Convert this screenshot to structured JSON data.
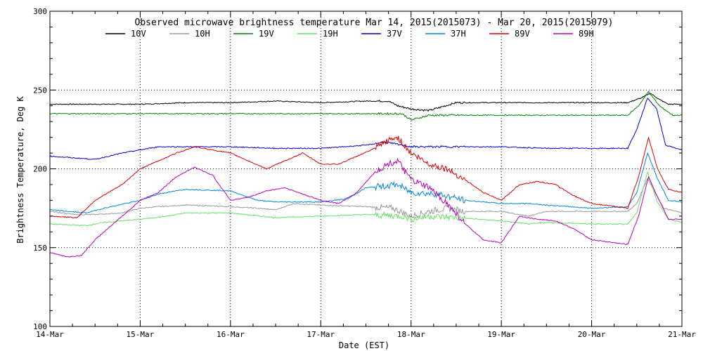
{
  "chart_data": {
    "type": "line",
    "title": "Observed microwave brightness temperature Mar 14, 2015(2015073) - Mar 20, 2015(2015079)",
    "xlabel": "Date (EST)",
    "ylabel": "Brightness Temperature, Deg K",
    "xlim": [
      0,
      7
    ],
    "ylim": [
      100,
      300
    ],
    "x_ticks": [
      "14-Mar",
      "15-Mar",
      "16-Mar",
      "17-Mar",
      "18-Mar",
      "19-Mar",
      "20-Mar",
      "21-Mar"
    ],
    "y_ticks": [
      100,
      150,
      200,
      250,
      300
    ],
    "grid": "dotted",
    "legend_position": "top",
    "series": [
      {
        "name": "10V",
        "color": "#000000",
        "points": [
          [
            0,
            241
          ],
          [
            1,
            241
          ],
          [
            1.5,
            242
          ],
          [
            2,
            242
          ],
          [
            2.5,
            243
          ],
          [
            3,
            242
          ],
          [
            3.5,
            243
          ],
          [
            3.75,
            243
          ],
          [
            3.85,
            240
          ],
          [
            4,
            238
          ],
          [
            4.2,
            237
          ],
          [
            4.5,
            242
          ],
          [
            5,
            242
          ],
          [
            5.5,
            242
          ],
          [
            6,
            242
          ],
          [
            6.4,
            242
          ],
          [
            6.55,
            245
          ],
          [
            6.65,
            248
          ],
          [
            6.75,
            244
          ],
          [
            6.85,
            241
          ],
          [
            7,
            241
          ]
        ]
      },
      {
        "name": "10H",
        "color": "#999999",
        "points": [
          [
            0,
            173
          ],
          [
            0.3,
            171
          ],
          [
            0.5,
            171
          ],
          [
            0.8,
            172
          ],
          [
            1,
            175
          ],
          [
            1.2,
            176
          ],
          [
            1.5,
            177
          ],
          [
            2,
            176
          ],
          [
            2.3,
            175
          ],
          [
            2.5,
            174
          ],
          [
            2.7,
            178
          ],
          [
            3,
            177
          ],
          [
            3.5,
            176
          ],
          [
            3.8,
            175
          ],
          [
            4,
            170
          ],
          [
            4.2,
            173
          ],
          [
            4.4,
            175
          ],
          [
            4.6,
            173
          ],
          [
            5,
            173
          ],
          [
            5.3,
            170
          ],
          [
            5.5,
            173
          ],
          [
            6,
            173
          ],
          [
            6.4,
            173
          ],
          [
            6.5,
            178
          ],
          [
            6.62,
            194
          ],
          [
            6.72,
            183
          ],
          [
            6.8,
            175
          ],
          [
            7,
            172
          ]
        ]
      },
      {
        "name": "19V",
        "color": "#008000",
        "points": [
          [
            0,
            235
          ],
          [
            1,
            235
          ],
          [
            2,
            235
          ],
          [
            3,
            235
          ],
          [
            3.5,
            235
          ],
          [
            3.9,
            235
          ],
          [
            4,
            231
          ],
          [
            4.2,
            234
          ],
          [
            5,
            234
          ],
          [
            6,
            234
          ],
          [
            6.4,
            234
          ],
          [
            6.52,
            240
          ],
          [
            6.63,
            249
          ],
          [
            6.75,
            240
          ],
          [
            6.9,
            234
          ],
          [
            7,
            234
          ]
        ]
      },
      {
        "name": "19H",
        "color": "#66e066",
        "points": [
          [
            0,
            165
          ],
          [
            0.4,
            164
          ],
          [
            0.6,
            166
          ],
          [
            1,
            168
          ],
          [
            1.3,
            170
          ],
          [
            1.5,
            172
          ],
          [
            2,
            172
          ],
          [
            2.5,
            169
          ],
          [
            3,
            170
          ],
          [
            3.5,
            171
          ],
          [
            3.9,
            170
          ],
          [
            4,
            168
          ],
          [
            4.2,
            170
          ],
          [
            4.5,
            169
          ],
          [
            5,
            167
          ],
          [
            5.3,
            165
          ],
          [
            5.5,
            166
          ],
          [
            6,
            165
          ],
          [
            6.4,
            165
          ],
          [
            6.5,
            172
          ],
          [
            6.62,
            198
          ],
          [
            6.72,
            180
          ],
          [
            6.85,
            168
          ],
          [
            7,
            166
          ]
        ]
      },
      {
        "name": "37V",
        "color": "#0000cc",
        "points": [
          [
            0,
            208
          ],
          [
            0.5,
            206
          ],
          [
            0.8,
            210
          ],
          [
            1,
            212
          ],
          [
            1.2,
            214
          ],
          [
            1.5,
            214
          ],
          [
            2,
            214
          ],
          [
            2.5,
            213
          ],
          [
            3,
            213
          ],
          [
            3.5,
            215
          ],
          [
            3.7,
            217
          ],
          [
            4,
            214
          ],
          [
            4.3,
            214
          ],
          [
            5,
            214
          ],
          [
            5.5,
            213
          ],
          [
            6,
            213
          ],
          [
            6.4,
            213
          ],
          [
            6.5,
            225
          ],
          [
            6.62,
            245
          ],
          [
            6.72,
            238
          ],
          [
            6.82,
            215
          ],
          [
            7,
            212
          ]
        ]
      },
      {
        "name": "37H",
        "color": "#0088dd",
        "points": [
          [
            0,
            174
          ],
          [
            0.4,
            172
          ],
          [
            0.6,
            175
          ],
          [
            1,
            180
          ],
          [
            1.2,
            184
          ],
          [
            1.5,
            187
          ],
          [
            2,
            186
          ],
          [
            2.3,
            180
          ],
          [
            2.5,
            179
          ],
          [
            3,
            179
          ],
          [
            3.3,
            181
          ],
          [
            3.5,
            188
          ],
          [
            3.7,
            189
          ],
          [
            3.85,
            190
          ],
          [
            4,
            185
          ],
          [
            4.3,
            184
          ],
          [
            4.6,
            180
          ],
          [
            5,
            178
          ],
          [
            5.3,
            178
          ],
          [
            5.5,
            177
          ],
          [
            6,
            175
          ],
          [
            6.4,
            176
          ],
          [
            6.5,
            185
          ],
          [
            6.62,
            210
          ],
          [
            6.72,
            195
          ],
          [
            6.85,
            180
          ],
          [
            7,
            179
          ]
        ]
      },
      {
        "name": "89V",
        "color": "#dd0000",
        "points": [
          [
            0,
            170
          ],
          [
            0.3,
            169
          ],
          [
            0.5,
            180
          ],
          [
            0.8,
            190
          ],
          [
            1,
            200
          ],
          [
            1.2,
            205
          ],
          [
            1.4,
            210
          ],
          [
            1.6,
            214
          ],
          [
            1.8,
            212
          ],
          [
            2,
            210
          ],
          [
            2.2,
            205
          ],
          [
            2.4,
            200
          ],
          [
            2.6,
            205
          ],
          [
            2.8,
            210
          ],
          [
            3,
            203
          ],
          [
            3.2,
            203
          ],
          [
            3.4,
            208
          ],
          [
            3.6,
            213
          ],
          [
            3.75,
            218
          ],
          [
            3.85,
            220
          ],
          [
            4,
            210
          ],
          [
            4.2,
            203
          ],
          [
            4.4,
            200
          ],
          [
            4.6,
            193
          ],
          [
            4.8,
            185
          ],
          [
            5,
            180
          ],
          [
            5.2,
            190
          ],
          [
            5.4,
            192
          ],
          [
            5.6,
            190
          ],
          [
            5.8,
            183
          ],
          [
            6,
            178
          ],
          [
            6.4,
            175
          ],
          [
            6.52,
            195
          ],
          [
            6.63,
            220
          ],
          [
            6.73,
            200
          ],
          [
            6.85,
            187
          ],
          [
            7,
            185
          ]
        ]
      },
      {
        "name": "89H",
        "color": "#bb00bb",
        "points": [
          [
            0,
            147
          ],
          [
            0.2,
            144
          ],
          [
            0.35,
            145
          ],
          [
            0.5,
            155
          ],
          [
            0.7,
            165
          ],
          [
            0.9,
            175
          ],
          [
            1,
            180
          ],
          [
            1.2,
            185
          ],
          [
            1.4,
            195
          ],
          [
            1.6,
            201
          ],
          [
            1.8,
            196
          ],
          [
            2,
            180
          ],
          [
            2.2,
            182
          ],
          [
            2.4,
            186
          ],
          [
            2.6,
            188
          ],
          [
            2.8,
            184
          ],
          [
            3,
            180
          ],
          [
            3.2,
            178
          ],
          [
            3.4,
            185
          ],
          [
            3.6,
            198
          ],
          [
            3.75,
            203
          ],
          [
            3.85,
            205
          ],
          [
            4,
            193
          ],
          [
            4.2,
            188
          ],
          [
            4.4,
            178
          ],
          [
            4.6,
            165
          ],
          [
            4.8,
            155
          ],
          [
            5,
            153
          ],
          [
            5.2,
            170
          ],
          [
            5.4,
            168
          ],
          [
            5.6,
            167
          ],
          [
            5.8,
            162
          ],
          [
            6,
            155
          ],
          [
            6.4,
            152
          ],
          [
            6.52,
            170
          ],
          [
            6.63,
            195
          ],
          [
            6.73,
            182
          ],
          [
            6.85,
            168
          ],
          [
            7,
            168
          ]
        ]
      }
    ],
    "legend": [
      "10V",
      "10H",
      "19V",
      "19H",
      "37V",
      "37H",
      "89V",
      "89H"
    ]
  }
}
